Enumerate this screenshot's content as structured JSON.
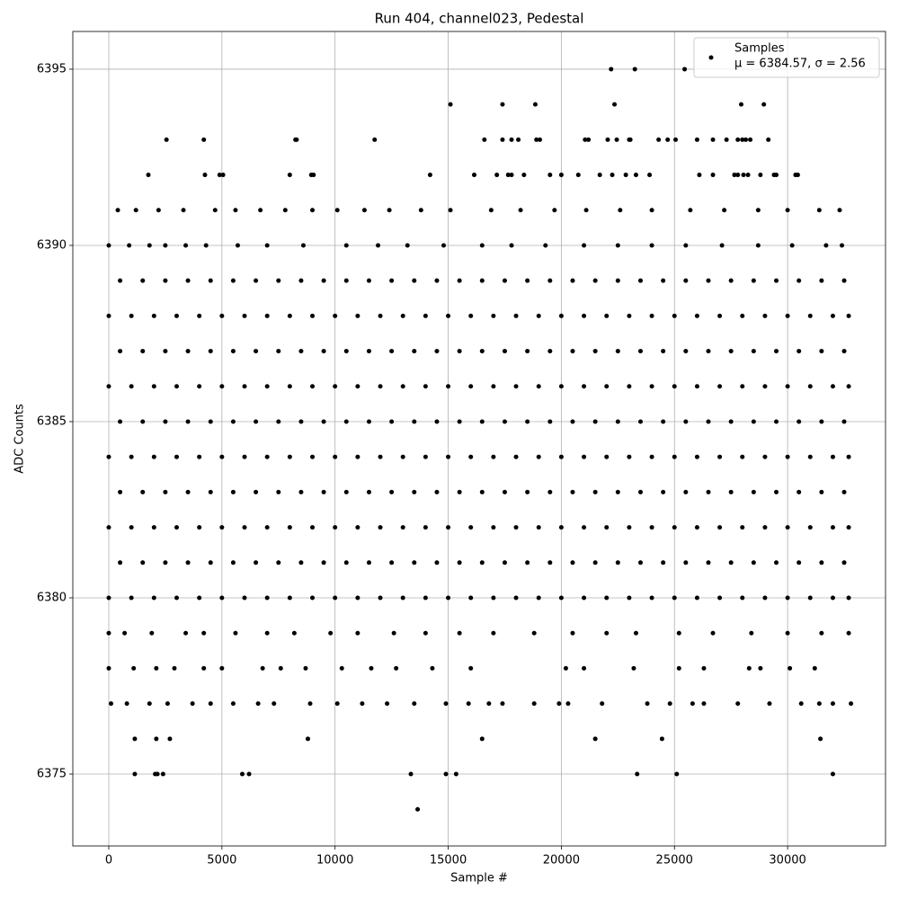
{
  "chart_data": {
    "type": "scatter",
    "title": "Run 404, channel023, Pedestal",
    "x_label": "Sample #",
    "y_label": "ADC Counts",
    "xlim": [
      -1589,
      34327
    ],
    "ylim": [
      6372.96,
      6396.07
    ],
    "xticks": [
      0,
      5000,
      10000,
      15000,
      20000,
      25000,
      30000
    ],
    "yticks": [
      6375,
      6380,
      6385,
      6390,
      6395
    ],
    "grid": true,
    "legend": "upper right",
    "series": [
      {
        "name": "Samples",
        "stats_label": "μ = 6384.57, σ = 2.56",
        "color": "#000000",
        "x": [
          13650,
          1150,
          2050,
          2150,
          2400,
          5900,
          6200,
          13350,
          14900,
          15350,
          23350,
          25100,
          32000,
          1150,
          2100,
          2700,
          8800,
          16500,
          21500,
          24450,
          31450,
          100,
          800,
          1800,
          2600,
          3700,
          4500,
          5500,
          6600,
          7300,
          8900,
          10100,
          11200,
          12300,
          13500,
          14900,
          15900,
          16800,
          17400,
          18800,
          19900,
          20300,
          21800,
          23800,
          24800,
          25800,
          26300,
          27800,
          29200,
          30600,
          31400,
          32000,
          32800,
          0,
          1100,
          2100,
          2900,
          4200,
          5000,
          6800,
          7600,
          8700,
          10300,
          11600,
          12700,
          14300,
          16000,
          20200,
          21000,
          23200,
          25200,
          26300,
          28300,
          28800,
          30100,
          31200,
          0,
          700,
          1900,
          3400,
          4200,
          5600,
          7000,
          8200,
          9800,
          11000,
          12600,
          14000,
          15500,
          17000,
          18800,
          20500,
          22000,
          23300,
          25200,
          26700,
          28400,
          30000,
          31500,
          32700,
          0,
          1000,
          2000,
          3000,
          4000,
          5000,
          6000,
          7000,
          8000,
          9000,
          10000,
          11000,
          12000,
          13000,
          14000,
          15000,
          16000,
          17000,
          18000,
          19000,
          20000,
          21000,
          22000,
          23000,
          24000,
          25000,
          26000,
          27000,
          28000,
          29000,
          30000,
          31000,
          32000,
          32700,
          500,
          1500,
          2500,
          3500,
          4500,
          5500,
          6500,
          7500,
          8500,
          9500,
          10500,
          11500,
          12500,
          13500,
          14500,
          15500,
          16500,
          17500,
          18500,
          19500,
          20500,
          21500,
          22500,
          23500,
          24500,
          25500,
          26500,
          27500,
          28500,
          29500,
          30500,
          31500,
          32500,
          0,
          1000,
          2000,
          3000,
          4000,
          5000,
          6000,
          7000,
          8000,
          9000,
          10000,
          11000,
          12000,
          13000,
          14000,
          15000,
          16000,
          17000,
          18000,
          19000,
          20000,
          21000,
          22000,
          23000,
          24000,
          25000,
          26000,
          27000,
          28000,
          29000,
          30000,
          31000,
          32000,
          32700,
          500,
          1500,
          2500,
          3500,
          4500,
          5500,
          6500,
          7500,
          8500,
          9500,
          10500,
          11500,
          12500,
          13500,
          14500,
          15500,
          16500,
          17500,
          18500,
          19500,
          20500,
          21500,
          22500,
          23500,
          24500,
          25500,
          26500,
          27500,
          28500,
          29500,
          30500,
          31500,
          32500,
          0,
          1000,
          2000,
          3000,
          4000,
          5000,
          6000,
          7000,
          8000,
          9000,
          10000,
          11000,
          12000,
          13000,
          14000,
          15000,
          16000,
          17000,
          18000,
          19000,
          20000,
          21000,
          22000,
          23000,
          24000,
          25000,
          26000,
          27000,
          28000,
          29000,
          30000,
          31000,
          32000,
          32700,
          500,
          1500,
          2500,
          3500,
          4500,
          5500,
          6500,
          7500,
          8500,
          9500,
          10500,
          11500,
          12500,
          13500,
          14500,
          15500,
          16500,
          17500,
          18500,
          19500,
          20500,
          21500,
          22500,
          23500,
          24500,
          25500,
          26500,
          27500,
          28500,
          29500,
          30500,
          31500,
          32500,
          0,
          1000,
          2000,
          3000,
          4000,
          5000,
          6000,
          7000,
          8000,
          9000,
          10000,
          11000,
          12000,
          13000,
          14000,
          15000,
          16000,
          17000,
          18000,
          19000,
          20000,
          21000,
          22000,
          23000,
          24000,
          25000,
          26000,
          27000,
          28000,
          29000,
          30000,
          31000,
          32000,
          32700,
          500,
          1500,
          2500,
          3500,
          4500,
          5500,
          6500,
          7500,
          8500,
          9500,
          10500,
          11500,
          12500,
          13500,
          14500,
          15500,
          16500,
          17500,
          18500,
          19500,
          20500,
          21500,
          22500,
          23500,
          24500,
          25500,
          26500,
          27500,
          28500,
          29500,
          30500,
          31500,
          32500,
          0,
          1000,
          2000,
          3000,
          4000,
          5000,
          6000,
          7000,
          8000,
          9000,
          10000,
          11000,
          12000,
          13000,
          14000,
          15000,
          16000,
          17000,
          18000,
          19000,
          20000,
          21000,
          22000,
          23000,
          24000,
          25000,
          26000,
          27000,
          28000,
          29000,
          30000,
          31000,
          32000,
          32700,
          500,
          1500,
          2500,
          3500,
          4500,
          5500,
          6500,
          7500,
          8500,
          9500,
          10500,
          11500,
          12500,
          13500,
          14500,
          15500,
          16500,
          17500,
          18500,
          19500,
          20500,
          21500,
          22500,
          23500,
          24500,
          25500,
          26500,
          27500,
          28500,
          29500,
          30500,
          31500,
          32500,
          0,
          900,
          1800,
          2500,
          3400,
          4300,
          5700,
          7000,
          8600,
          10500,
          11900,
          13200,
          14800,
          16500,
          17800,
          19300,
          21000,
          22500,
          24000,
          25500,
          27100,
          28700,
          30200,
          31700,
          32400,
          400,
          1200,
          2200,
          3300,
          4700,
          5600,
          6700,
          7800,
          9000,
          10100,
          11300,
          12400,
          13800,
          15100,
          16900,
          18200,
          19700,
          21100,
          22600,
          24000,
          25700,
          27200,
          28700,
          30000,
          31400,
          32300,
          1750,
          4250,
          4900,
          5050,
          8000,
          8950,
          9050,
          14200,
          16150,
          17150,
          17650,
          17800,
          18350,
          19500,
          20000,
          20750,
          21700,
          22250,
          22850,
          23300,
          23900,
          26100,
          26700,
          27650,
          27800,
          28050,
          28250,
          28800,
          29400,
          29500,
          30350,
          30450,
          2550,
          4200,
          8250,
          8300,
          11750,
          16600,
          17400,
          17800,
          18100,
          18900,
          19050,
          21050,
          21200,
          22050,
          22450,
          23000,
          23050,
          24300,
          24700,
          25050,
          26000,
          26700,
          27300,
          27800,
          28000,
          28150,
          28350,
          29150,
          15100,
          17400,
          18850,
          22350,
          27950,
          28950,
          22200,
          23250,
          25450
        ],
        "values": [
          6374,
          6375,
          6375,
          6375,
          6375,
          6375,
          6375,
          6375,
          6375,
          6375,
          6375,
          6375,
          6375,
          6376,
          6376,
          6376,
          6376,
          6376,
          6376,
          6376,
          6376,
          6377,
          6377,
          6377,
          6377,
          6377,
          6377,
          6377,
          6377,
          6377,
          6377,
          6377,
          6377,
          6377,
          6377,
          6377,
          6377,
          6377,
          6377,
          6377,
          6377,
          6377,
          6377,
          6377,
          6377,
          6377,
          6377,
          6377,
          6377,
          6377,
          6377,
          6377,
          6377,
          6378,
          6378,
          6378,
          6378,
          6378,
          6378,
          6378,
          6378,
          6378,
          6378,
          6378,
          6378,
          6378,
          6378,
          6378,
          6378,
          6378,
          6378,
          6378,
          6378,
          6378,
          6378,
          6378,
          6379,
          6379,
          6379,
          6379,
          6379,
          6379,
          6379,
          6379,
          6379,
          6379,
          6379,
          6379,
          6379,
          6379,
          6379,
          6379,
          6379,
          6379,
          6379,
          6379,
          6379,
          6379,
          6379,
          6379,
          6380,
          6380,
          6380,
          6380,
          6380,
          6380,
          6380,
          6380,
          6380,
          6380,
          6380,
          6380,
          6380,
          6380,
          6380,
          6380,
          6380,
          6380,
          6380,
          6380,
          6380,
          6380,
          6380,
          6380,
          6380,
          6380,
          6380,
          6380,
          6380,
          6380,
          6380,
          6380,
          6380,
          6380,
          6381,
          6381,
          6381,
          6381,
          6381,
          6381,
          6381,
          6381,
          6381,
          6381,
          6381,
          6381,
          6381,
          6381,
          6381,
          6381,
          6381,
          6381,
          6381,
          6381,
          6381,
          6381,
          6381,
          6381,
          6381,
          6381,
          6381,
          6381,
          6381,
          6381,
          6381,
          6381,
          6381,
          6382,
          6382,
          6382,
          6382,
          6382,
          6382,
          6382,
          6382,
          6382,
          6382,
          6382,
          6382,
          6382,
          6382,
          6382,
          6382,
          6382,
          6382,
          6382,
          6382,
          6382,
          6382,
          6382,
          6382,
          6382,
          6382,
          6382,
          6382,
          6382,
          6382,
          6382,
          6382,
          6382,
          6382,
          6383,
          6383,
          6383,
          6383,
          6383,
          6383,
          6383,
          6383,
          6383,
          6383,
          6383,
          6383,
          6383,
          6383,
          6383,
          6383,
          6383,
          6383,
          6383,
          6383,
          6383,
          6383,
          6383,
          6383,
          6383,
          6383,
          6383,
          6383,
          6383,
          6383,
          6383,
          6383,
          6383,
          6384,
          6384,
          6384,
          6384,
          6384,
          6384,
          6384,
          6384,
          6384,
          6384,
          6384,
          6384,
          6384,
          6384,
          6384,
          6384,
          6384,
          6384,
          6384,
          6384,
          6384,
          6384,
          6384,
          6384,
          6384,
          6384,
          6384,
          6384,
          6384,
          6384,
          6384,
          6384,
          6384,
          6384,
          6385,
          6385,
          6385,
          6385,
          6385,
          6385,
          6385,
          6385,
          6385,
          6385,
          6385,
          6385,
          6385,
          6385,
          6385,
          6385,
          6385,
          6385,
          6385,
          6385,
          6385,
          6385,
          6385,
          6385,
          6385,
          6385,
          6385,
          6385,
          6385,
          6385,
          6385,
          6385,
          6385,
          6386,
          6386,
          6386,
          6386,
          6386,
          6386,
          6386,
          6386,
          6386,
          6386,
          6386,
          6386,
          6386,
          6386,
          6386,
          6386,
          6386,
          6386,
          6386,
          6386,
          6386,
          6386,
          6386,
          6386,
          6386,
          6386,
          6386,
          6386,
          6386,
          6386,
          6386,
          6386,
          6386,
          6386,
          6387,
          6387,
          6387,
          6387,
          6387,
          6387,
          6387,
          6387,
          6387,
          6387,
          6387,
          6387,
          6387,
          6387,
          6387,
          6387,
          6387,
          6387,
          6387,
          6387,
          6387,
          6387,
          6387,
          6387,
          6387,
          6387,
          6387,
          6387,
          6387,
          6387,
          6387,
          6387,
          6387,
          6388,
          6388,
          6388,
          6388,
          6388,
          6388,
          6388,
          6388,
          6388,
          6388,
          6388,
          6388,
          6388,
          6388,
          6388,
          6388,
          6388,
          6388,
          6388,
          6388,
          6388,
          6388,
          6388,
          6388,
          6388,
          6388,
          6388,
          6388,
          6388,
          6388,
          6388,
          6388,
          6388,
          6388,
          6389,
          6389,
          6389,
          6389,
          6389,
          6389,
          6389,
          6389,
          6389,
          6389,
          6389,
          6389,
          6389,
          6389,
          6389,
          6389,
          6389,
          6389,
          6389,
          6389,
          6389,
          6389,
          6389,
          6389,
          6389,
          6389,
          6389,
          6389,
          6389,
          6389,
          6389,
          6389,
          6389,
          6390,
          6390,
          6390,
          6390,
          6390,
          6390,
          6390,
          6390,
          6390,
          6390,
          6390,
          6390,
          6390,
          6390,
          6390,
          6390,
          6390,
          6390,
          6390,
          6390,
          6390,
          6390,
          6390,
          6390,
          6390,
          6391,
          6391,
          6391,
          6391,
          6391,
          6391,
          6391,
          6391,
          6391,
          6391,
          6391,
          6391,
          6391,
          6391,
          6391,
          6391,
          6391,
          6391,
          6391,
          6391,
          6391,
          6391,
          6391,
          6391,
          6391,
          6391,
          6392,
          6392,
          6392,
          6392,
          6392,
          6392,
          6392,
          6392,
          6392,
          6392,
          6392,
          6392,
          6392,
          6392,
          6392,
          6392,
          6392,
          6392,
          6392,
          6392,
          6392,
          6392,
          6392,
          6392,
          6392,
          6392,
          6392,
          6392,
          6392,
          6392,
          6392,
          6392,
          6393,
          6393,
          6393,
          6393,
          6393,
          6393,
          6393,
          6393,
          6393,
          6393,
          6393,
          6393,
          6393,
          6393,
          6393,
          6393,
          6393,
          6393,
          6393,
          6393,
          6393,
          6393,
          6393,
          6393,
          6393,
          6393,
          6393,
          6393,
          6394,
          6394,
          6394,
          6394,
          6394,
          6394,
          6395,
          6395,
          6395
        ]
      }
    ]
  }
}
